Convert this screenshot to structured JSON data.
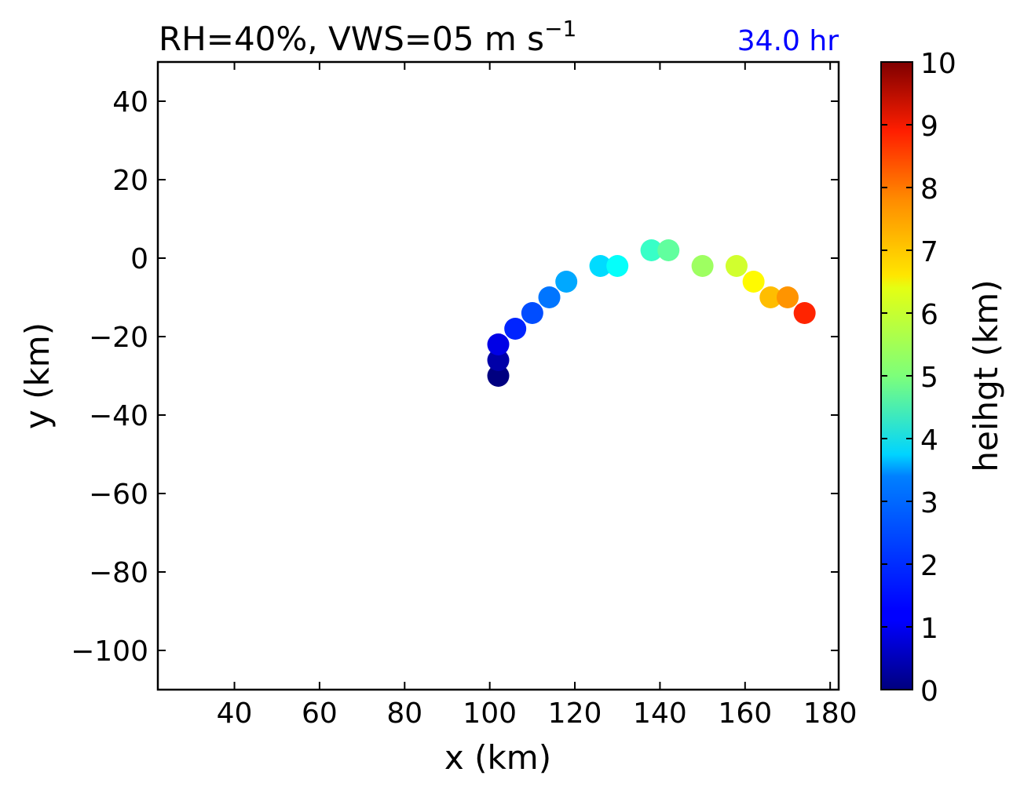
{
  "chart_data": {
    "type": "scatter",
    "title_main": "RH=40%, VWS=05 m s",
    "title_superscript": "−1",
    "time_label": "34.0 hr",
    "xlabel": "x (km)",
    "ylabel": "y (km)",
    "colorbar_label": "heihgt (km)",
    "xlim": [
      22,
      182
    ],
    "ylim": [
      -110,
      50
    ],
    "xticks": [
      40,
      60,
      80,
      100,
      120,
      140,
      160,
      180
    ],
    "xtick_labels": [
      "40",
      "60",
      "80",
      "100",
      "120",
      "140",
      "160",
      "180"
    ],
    "yticks": [
      40,
      20,
      0,
      -20,
      -40,
      -60,
      -80,
      -100
    ],
    "ytick_labels": [
      "40",
      "20",
      "0",
      "−20",
      "−40",
      "−60",
      "−80",
      "−100"
    ],
    "colorbar_range": [
      0,
      10
    ],
    "colorbar_ticks": [
      0,
      1,
      2,
      3,
      4,
      5,
      6,
      7,
      8,
      9,
      10
    ],
    "colorbar_tick_labels": [
      "0",
      "1",
      "2",
      "3",
      "4",
      "5",
      "6",
      "7",
      "8",
      "9",
      "10"
    ],
    "colormap": "jet",
    "time_label_color": "#0000ff",
    "points": [
      {
        "x": 102,
        "y": -30,
        "height": 0.0
      },
      {
        "x": 102,
        "y": -26,
        "height": 0.4
      },
      {
        "x": 102,
        "y": -22,
        "height": 1.0
      },
      {
        "x": 106,
        "y": -18,
        "height": 1.6
      },
      {
        "x": 110,
        "y": -14,
        "height": 2.0
      },
      {
        "x": 114,
        "y": -10,
        "height": 2.4
      },
      {
        "x": 118,
        "y": -6,
        "height": 2.9
      },
      {
        "x": 126,
        "y": -2,
        "height": 3.4
      },
      {
        "x": 130,
        "y": -2,
        "height": 3.8
      },
      {
        "x": 138,
        "y": 2,
        "height": 4.3
      },
      {
        "x": 142,
        "y": 2,
        "height": 4.7
      },
      {
        "x": 150,
        "y": -2,
        "height": 5.3
      },
      {
        "x": 158,
        "y": -2,
        "height": 5.8
      },
      {
        "x": 162,
        "y": -6,
        "height": 6.3
      },
      {
        "x": 166,
        "y": -10,
        "height": 6.9
      },
      {
        "x": 170,
        "y": -10,
        "height": 7.3
      },
      {
        "x": 174,
        "y": -14,
        "height": 8.4
      }
    ]
  }
}
